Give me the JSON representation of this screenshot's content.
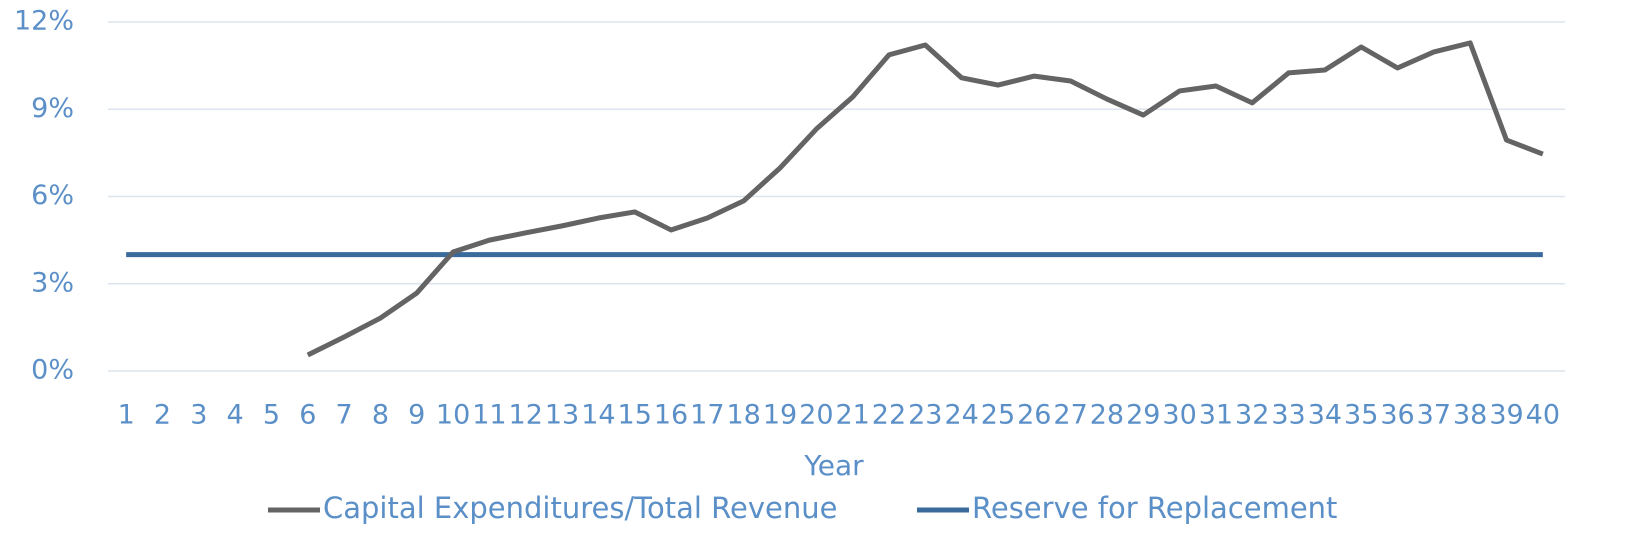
{
  "chart_data": {
    "type": "line",
    "x_label": "Year",
    "categories": [
      1,
      2,
      3,
      4,
      5,
      6,
      7,
      8,
      9,
      10,
      11,
      12,
      13,
      14,
      15,
      16,
      17,
      18,
      19,
      20,
      21,
      22,
      23,
      24,
      25,
      26,
      27,
      28,
      29,
      30,
      31,
      32,
      33,
      34,
      35,
      36,
      37,
      38,
      39,
      40
    ],
    "series": [
      {
        "name": "Capital Expenditures/Total Revenue",
        "color": "#646464",
        "values": [
          null,
          null,
          null,
          null,
          null,
          0.55,
          1.17,
          1.82,
          2.68,
          4.09,
          4.5,
          4.75,
          4.99,
          5.26,
          5.47,
          4.85,
          5.26,
          5.85,
          6.98,
          8.32,
          9.42,
          10.87,
          11.21,
          10.08,
          9.83,
          10.14,
          9.97,
          9.35,
          8.8,
          9.63,
          9.8,
          9.22,
          10.25,
          10.35,
          11.14,
          10.42,
          10.97,
          11.28,
          7.94,
          7.46
        ]
      },
      {
        "name": "Reserve for Replacement",
        "color": "#3a6a9b",
        "values": [
          4,
          4,
          4,
          4,
          4,
          4,
          4,
          4,
          4,
          4,
          4,
          4,
          4,
          4,
          4,
          4,
          4,
          4,
          4,
          4,
          4,
          4,
          4,
          4,
          4,
          4,
          4,
          4,
          4,
          4,
          4,
          4,
          4,
          4,
          4,
          4,
          4,
          4,
          4,
          4
        ]
      }
    ],
    "ylim": [
      0,
      12
    ],
    "yticks": [
      {
        "value": 0,
        "label": "0%"
      },
      {
        "value": 3,
        "label": "3%"
      },
      {
        "value": 6,
        "label": "6%"
      },
      {
        "value": 9,
        "label": "9%"
      },
      {
        "value": 12,
        "label": "12%"
      }
    ],
    "grid": true,
    "legend": "bottom"
  }
}
